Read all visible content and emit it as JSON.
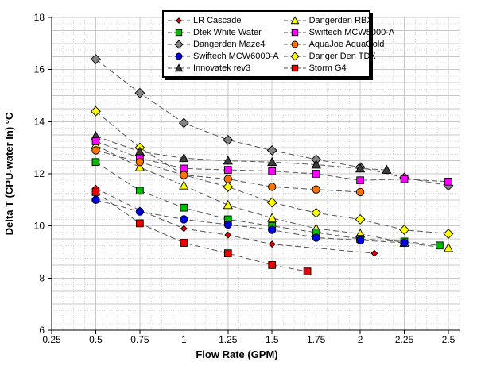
{
  "chart_data": {
    "type": "line",
    "title": "",
    "xlabel": "Flow Rate (GPM)",
    "ylabel": "Delta T (CPU-water In) °C",
    "xlim": [
      0.25,
      2.5625
    ],
    "ylim": [
      6,
      18
    ],
    "x_tick_values": [
      0.25,
      0.5,
      0.75,
      1,
      1.25,
      1.5,
      1.75,
      2,
      2.25,
      2.5
    ],
    "x_tick_labels": [
      "0.25",
      "0.5",
      "0.75",
      "1",
      "1.25",
      "1.5",
      "1.75",
      "2",
      "2.25",
      "2.5"
    ],
    "y_tick_values": [
      6,
      8,
      10,
      12,
      14,
      16,
      18
    ],
    "y_tick_labels": [
      "6",
      "8",
      "10",
      "12",
      "14",
      "16",
      "18"
    ],
    "grid": {
      "major_color": "#c8c8c8",
      "minor_color": "#d6d6d6",
      "x_major_step": 0.25,
      "x_minor_step": 0.0625,
      "y_major_step": 0.5,
      "y_minor_step": 0.25
    },
    "line_style": {
      "color": "#555555",
      "dash": "7 4"
    },
    "legend_position": "top-center",
    "series": [
      {
        "name": "LR Cascade",
        "marker": "diamond-small",
        "color": "#dd0000",
        "points": [
          [
            0.5,
            11.45
          ],
          [
            0.75,
            10.6
          ],
          [
            1,
            9.9
          ],
          [
            1.25,
            9.65
          ],
          [
            1.5,
            9.3
          ],
          [
            2.08,
            8.95
          ]
        ]
      },
      {
        "name": "Dtek White Water",
        "marker": "square",
        "color": "#00bb00",
        "points": [
          [
            0.5,
            12.45
          ],
          [
            0.75,
            11.35
          ],
          [
            1,
            10.7
          ],
          [
            1.25,
            10.25
          ],
          [
            1.5,
            10.0
          ],
          [
            1.75,
            9.75
          ],
          [
            2,
            9.5
          ],
          [
            2.25,
            9.4
          ],
          [
            2.45,
            9.25
          ]
        ]
      },
      {
        "name": "Dangerden Maze4",
        "marker": "diamond",
        "color": "#848484",
        "points": [
          [
            0.5,
            16.4
          ],
          [
            0.75,
            15.1
          ],
          [
            1,
            13.95
          ],
          [
            1.25,
            13.3
          ],
          [
            1.5,
            12.9
          ],
          [
            1.75,
            12.55
          ],
          [
            2,
            12.25
          ],
          [
            2.25,
            11.85
          ],
          [
            2.5,
            11.55
          ]
        ]
      },
      {
        "name": "Swiftech MCW6000-A",
        "marker": "circle",
        "color": "#0000dd",
        "points": [
          [
            0.5,
            11.0
          ],
          [
            0.75,
            10.55
          ],
          [
            1,
            10.25
          ],
          [
            1.25,
            10.05
          ],
          [
            1.5,
            9.85
          ],
          [
            1.75,
            9.55
          ],
          [
            2,
            9.45
          ],
          [
            2.25,
            9.35
          ]
        ]
      },
      {
        "name": "Innovatek rev3",
        "marker": "triangle",
        "color": "#3c3c3c",
        "points": [
          [
            0.5,
            13.45
          ],
          [
            0.75,
            12.85
          ],
          [
            1,
            12.6
          ],
          [
            1.25,
            12.5
          ],
          [
            1.5,
            12.45
          ],
          [
            1.75,
            12.35
          ],
          [
            2,
            12.2
          ],
          [
            2.15,
            12.15
          ]
        ]
      },
      {
        "name": "Dangerden RBX",
        "marker": "triangle",
        "color": "#ffff00",
        "points": [
          [
            0.5,
            13.1
          ],
          [
            0.75,
            12.25
          ],
          [
            1,
            11.55
          ],
          [
            1.25,
            10.8
          ],
          [
            1.5,
            10.3
          ],
          [
            1.75,
            9.9
          ],
          [
            2,
            9.7
          ],
          [
            2.25,
            9.35
          ],
          [
            2.5,
            9.15
          ]
        ]
      },
      {
        "name": "Swiftech MCW5000-A",
        "marker": "square",
        "color": "#ff00ff",
        "points": [
          [
            0.5,
            13.25
          ],
          [
            0.75,
            12.6
          ],
          [
            1,
            12.2
          ],
          [
            1.25,
            12.15
          ],
          [
            1.5,
            12.1
          ],
          [
            1.75,
            12.0
          ],
          [
            2,
            11.75
          ],
          [
            2.25,
            11.8
          ],
          [
            2.5,
            11.7
          ]
        ]
      },
      {
        "name": "AquaJoe AquaGold",
        "marker": "circle",
        "color": "#ff7300",
        "points": [
          [
            0.5,
            12.9
          ],
          [
            0.75,
            12.45
          ],
          [
            1,
            11.95
          ],
          [
            1.25,
            11.8
          ],
          [
            1.5,
            11.5
          ],
          [
            1.75,
            11.4
          ],
          [
            2,
            11.3
          ]
        ]
      },
      {
        "name": "Danger Den TDX",
        "marker": "diamond",
        "color": "#ffff00",
        "points": [
          [
            0.5,
            14.4
          ],
          [
            0.75,
            13.0
          ],
          [
            1,
            11.95
          ],
          [
            1.25,
            11.5
          ],
          [
            1.5,
            10.9
          ],
          [
            1.75,
            10.5
          ],
          [
            2,
            10.25
          ],
          [
            2.25,
            9.85
          ],
          [
            2.5,
            9.7
          ]
        ]
      },
      {
        "name": "Storm G4",
        "marker": "square",
        "color": "#ee0000",
        "points": [
          [
            0.5,
            11.3
          ],
          [
            0.75,
            10.1
          ],
          [
            1,
            9.35
          ],
          [
            1.25,
            8.95
          ],
          [
            1.5,
            8.5
          ],
          [
            1.7,
            8.25
          ]
        ]
      }
    ],
    "draw_order": [
      2,
      8,
      4,
      5,
      6,
      7,
      1,
      0,
      9,
      3
    ],
    "legend": {
      "left": [
        "LR Cascade",
        "Dtek White Water",
        "Dangerden Maze4",
        "Swiftech MCW6000-A",
        "Innovatek rev3"
      ],
      "right": [
        "Dangerden RBX",
        "Swiftech MCW5000-A",
        "AquaJoe AquaGold",
        "Danger Den TDX",
        "Storm G4"
      ]
    }
  }
}
